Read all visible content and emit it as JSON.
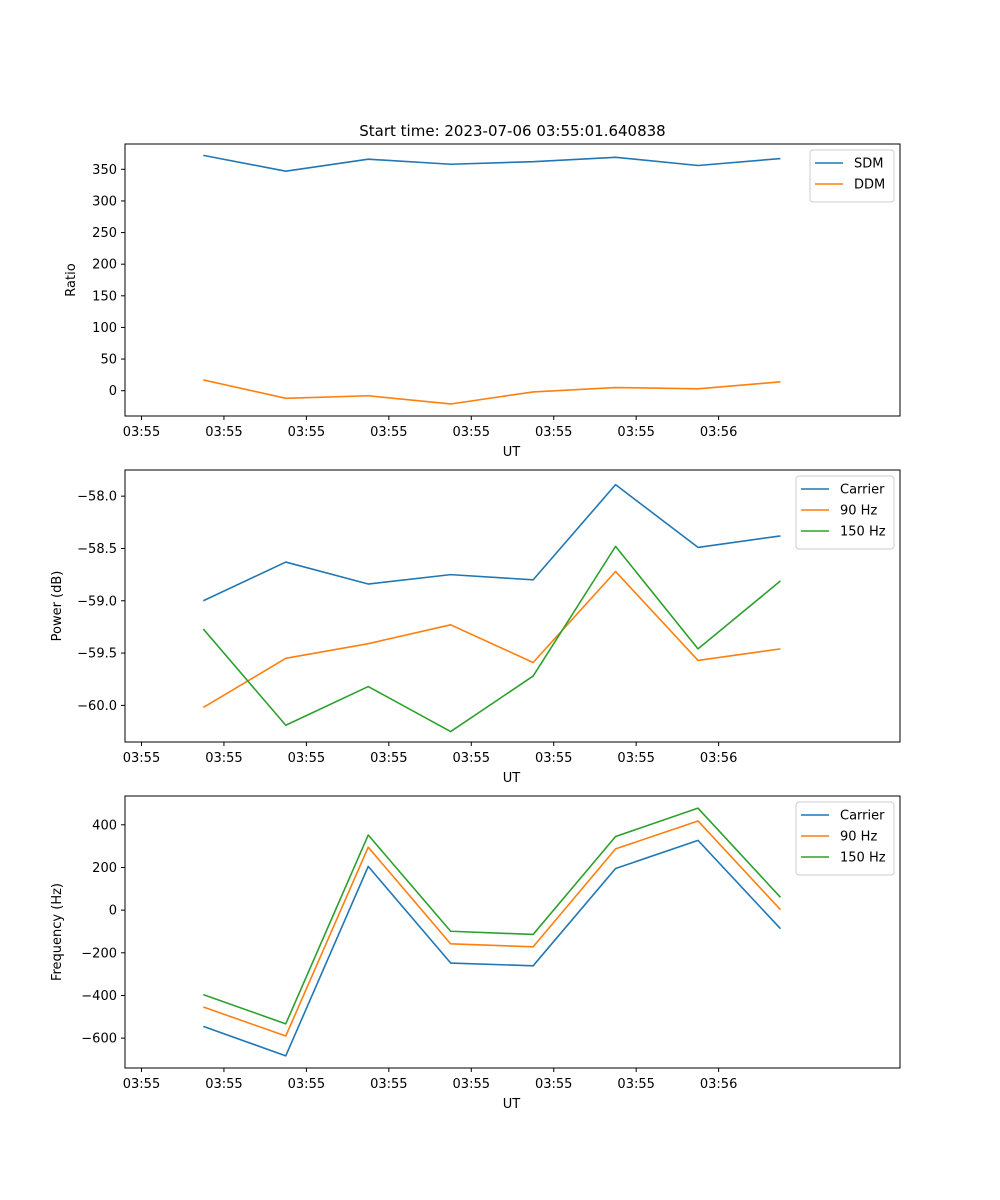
{
  "chart_data": [
    {
      "type": "line",
      "title": "Start time: 2023-07-06 03:55:01.640838",
      "xlabel": "UT",
      "ylabel": "Ratio",
      "x_tick_labels": [
        "03:55",
        "03:55",
        "03:55",
        "03:55",
        "03:55",
        "03:55",
        "03:55",
        "03:56"
      ],
      "xlim": [
        -0.2,
        9.2
      ],
      "ylim": [
        -40,
        390
      ],
      "y_ticks": [
        0,
        50,
        100,
        150,
        200,
        250,
        300,
        350
      ],
      "y_tick_labels": [
        "0",
        "50",
        "100",
        "150",
        "200",
        "250",
        "300",
        "350"
      ],
      "x": [
        0.75,
        1.75,
        2.75,
        3.75,
        4.75,
        5.75,
        6.75,
        7.75
      ],
      "series": [
        {
          "name": "SDM",
          "color": "#1f77b4",
          "values": [
            372,
            347,
            366,
            358,
            362,
            369,
            356,
            367
          ]
        },
        {
          "name": "DDM",
          "color": "#ff7f0e",
          "values": [
            17,
            -12,
            -8,
            -21,
            -2,
            5,
            3,
            14
          ]
        }
      ],
      "legend": "top-right",
      "grid": false
    },
    {
      "type": "line",
      "title": "",
      "xlabel": "UT",
      "ylabel": "Power (dB)",
      "x_tick_labels": [
        "03:55",
        "03:55",
        "03:55",
        "03:55",
        "03:55",
        "03:55",
        "03:55",
        "03:56"
      ],
      "xlim": [
        -0.2,
        9.2
      ],
      "ylim": [
        -60.35,
        -57.75
      ],
      "y_ticks": [
        -60.0,
        -59.5,
        -59.0,
        -58.5,
        -58.0
      ],
      "y_tick_labels": [
        "−60.0",
        "−59.5",
        "−59.0",
        "−58.5",
        "−58.0"
      ],
      "x": [
        0.75,
        1.75,
        2.75,
        3.75,
        4.75,
        5.75,
        6.75,
        7.75
      ],
      "series": [
        {
          "name": "Carrier",
          "color": "#1f77b4",
          "values": [
            -59.0,
            -58.63,
            -58.84,
            -58.75,
            -58.8,
            -57.89,
            -58.49,
            -58.38
          ]
        },
        {
          "name": "90 Hz",
          "color": "#ff7f0e",
          "values": [
            -60.02,
            -59.55,
            -59.41,
            -59.23,
            -59.59,
            -58.72,
            -59.57,
            -59.46
          ]
        },
        {
          "name": "150 Hz",
          "color": "#2ca02c",
          "values": [
            -59.27,
            -60.19,
            -59.82,
            -60.25,
            -59.72,
            -58.48,
            -59.46,
            -58.81
          ]
        }
      ],
      "legend": "top-right",
      "grid": false
    },
    {
      "type": "line",
      "title": "",
      "xlabel": "UT",
      "ylabel": "Frequency (Hz)",
      "x_tick_labels": [
        "03:55",
        "03:55",
        "03:55",
        "03:55",
        "03:55",
        "03:55",
        "03:55",
        "03:56"
      ],
      "xlim": [
        -0.2,
        9.2
      ],
      "ylim": [
        -740,
        535
      ],
      "y_ticks": [
        -600,
        -400,
        -200,
        0,
        200,
        400
      ],
      "y_tick_labels": [
        "−600",
        "−400",
        "−200",
        "0",
        "200",
        "400"
      ],
      "x": [
        0.75,
        1.75,
        2.75,
        3.75,
        4.75,
        5.75,
        6.75,
        7.75
      ],
      "series": [
        {
          "name": "Carrier",
          "color": "#1f77b4",
          "values": [
            -545,
            -683,
            205,
            -248,
            -261,
            195,
            327,
            -87
          ]
        },
        {
          "name": "90 Hz",
          "color": "#ff7f0e",
          "values": [
            -454,
            -590,
            295,
            -158,
            -172,
            287,
            418,
            2
          ]
        },
        {
          "name": "150 Hz",
          "color": "#2ca02c",
          "values": [
            -396,
            -533,
            352,
            -99,
            -114,
            345,
            478,
            60
          ]
        }
      ],
      "legend": "top-right",
      "grid": false
    }
  ]
}
